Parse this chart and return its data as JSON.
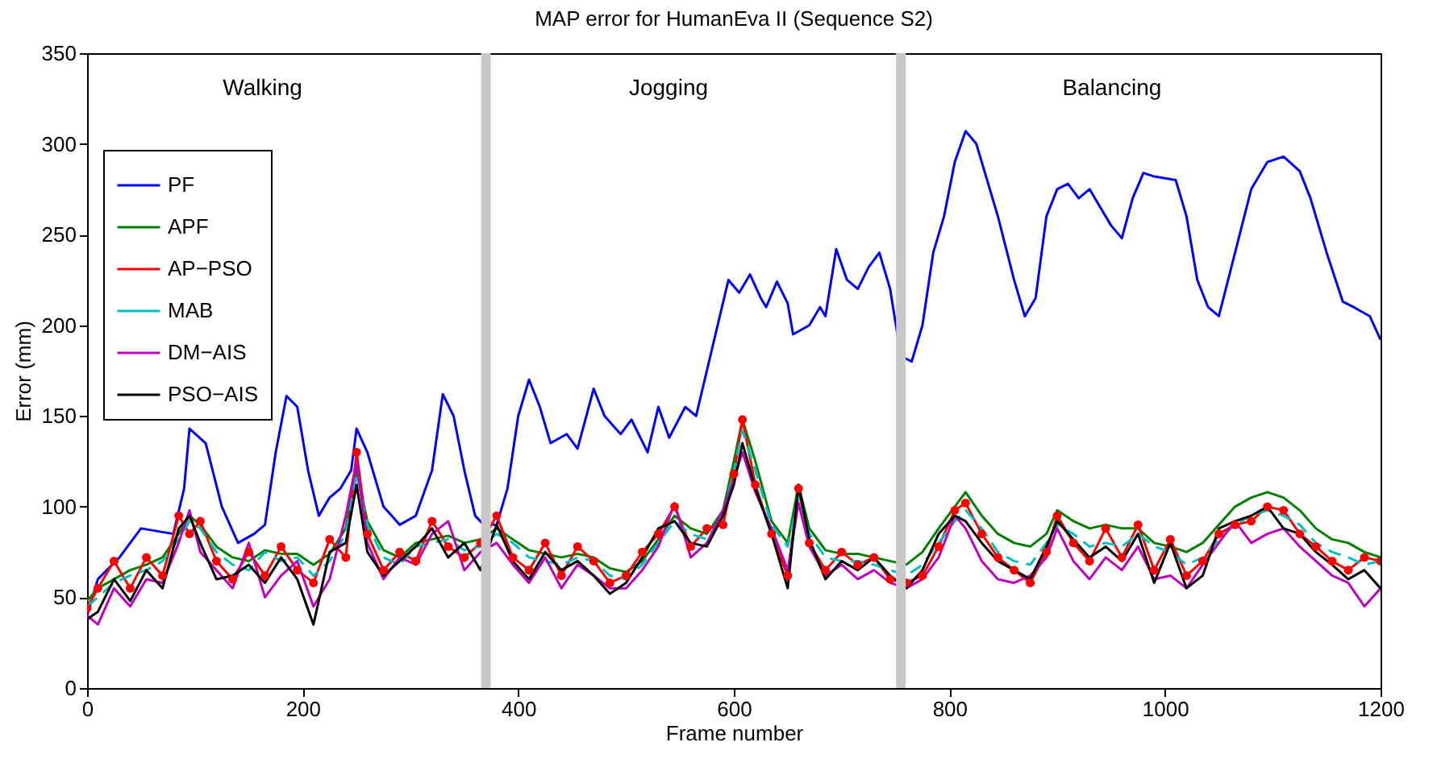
{
  "chart_data": {
    "type": "line",
    "title": "MAP error for HumanEva II (Sequence S2)",
    "xlabel": "Frame number",
    "ylabel": "Error (mm)",
    "xlim": [
      0,
      1200
    ],
    "xticks": [
      0,
      200,
      400,
      600,
      800,
      1000,
      1200
    ],
    "ylim": [
      0,
      350
    ],
    "yticks": [
      0,
      50,
      100,
      150,
      200,
      250,
      300,
      350
    ],
    "grid": false,
    "legend": "top left",
    "x": [
      0,
      10,
      25,
      40,
      55,
      70,
      85,
      95,
      105,
      120,
      135,
      150,
      165,
      180,
      195,
      210,
      225,
      240,
      250,
      260,
      275,
      290,
      305,
      320,
      335,
      350,
      365,
      380,
      395,
      410,
      425,
      440,
      455,
      470,
      485,
      500,
      515,
      530,
      545,
      560,
      575,
      590,
      600,
      608,
      620,
      635,
      650,
      660,
      670,
      685,
      700,
      715,
      730,
      745,
      760,
      775,
      790,
      805,
      815,
      830,
      845,
      860,
      875,
      890,
      900,
      915,
      930,
      945,
      960,
      975,
      990,
      1005,
      1020,
      1035,
      1050,
      1065,
      1080,
      1095,
      1110,
      1125,
      1140,
      1155,
      1170,
      1185,
      1200
    ],
    "series": [
      {
        "name": "PF",
        "color": "#0000ff",
        "line_style": "solid",
        "x": [
          0,
          10,
          30,
          50,
          80,
          90,
          95,
          110,
          125,
          140,
          155,
          165,
          175,
          185,
          195,
          205,
          215,
          225,
          235,
          245,
          250,
          260,
          275,
          290,
          305,
          320,
          330,
          340,
          350,
          360,
          368,
          380,
          390,
          400,
          410,
          420,
          430,
          445,
          455,
          470,
          480,
          495,
          505,
          520,
          530,
          540,
          555,
          565,
          575,
          585,
          595,
          605,
          615,
          625,
          630,
          640,
          650,
          655,
          670,
          680,
          685,
          695,
          705,
          715,
          725,
          735,
          745,
          755,
          765,
          775,
          785,
          795,
          805,
          815,
          825,
          845,
          860,
          870,
          880,
          890,
          900,
          910,
          920,
          930,
          950,
          960,
          970,
          980,
          990,
          1010,
          1020,
          1030,
          1040,
          1050,
          1065,
          1080,
          1095,
          1110,
          1125,
          1135,
          1150,
          1165,
          1175,
          1190,
          1200
        ],
        "values": [
          40,
          60,
          72,
          88,
          85,
          110,
          143,
          135,
          100,
          80,
          85,
          90,
          130,
          161,
          155,
          120,
          95,
          105,
          110,
          120,
          143,
          130,
          100,
          90,
          95,
          120,
          162,
          150,
          120,
          95,
          90,
          90,
          110,
          150,
          170,
          155,
          135,
          140,
          132,
          165,
          150,
          140,
          148,
          130,
          155,
          138,
          155,
          150,
          175,
          200,
          225,
          218,
          228,
          215,
          210,
          224,
          212,
          195,
          200,
          210,
          205,
          242,
          225,
          220,
          232,
          240,
          220,
          183,
          180,
          200,
          240,
          260,
          290,
          307,
          300,
          260,
          225,
          205,
          215,
          260,
          275,
          278,
          270,
          275,
          255,
          248,
          270,
          284,
          282,
          280,
          260,
          225,
          210,
          205,
          240,
          275,
          290,
          293,
          285,
          270,
          240,
          213,
          210,
          205,
          192
        ]
      },
      {
        "name": "APF",
        "color": "#008000",
        "line_style": "solid",
        "values": [
          48,
          55,
          60,
          65,
          68,
          72,
          85,
          95,
          90,
          78,
          72,
          70,
          76,
          74,
          74,
          68,
          74,
          88,
          120,
          92,
          76,
          72,
          80,
          82,
          84,
          80,
          82,
          88,
          82,
          76,
          74,
          72,
          74,
          72,
          66,
          64,
          70,
          82,
          95,
          88,
          85,
          98,
          125,
          148,
          125,
          92,
          80,
          112,
          88,
          76,
          74,
          74,
          72,
          70,
          68,
          75,
          88,
          100,
          108,
          95,
          85,
          80,
          78,
          85,
          98,
          92,
          88,
          90,
          88,
          88,
          80,
          78,
          75,
          80,
          90,
          100,
          105,
          108,
          105,
          98,
          88,
          82,
          80,
          75,
          72
        ]
      },
      {
        "name": "AP−PSO",
        "color": "#ff0000",
        "line_style": "solid",
        "marker": "circle",
        "values": [
          44,
          55,
          70,
          55,
          72,
          62,
          95,
          85,
          92,
          70,
          60,
          75,
          62,
          78,
          65,
          58,
          82,
          72,
          130,
          85,
          65,
          75,
          70,
          92,
          78,
          72,
          80,
          95,
          72,
          65,
          80,
          62,
          78,
          70,
          58,
          62,
          75,
          85,
          100,
          78,
          88,
          90,
          118,
          148,
          112,
          85,
          62,
          110,
          80,
          65,
          75,
          68,
          72,
          60,
          58,
          62,
          78,
          98,
          102,
          85,
          72,
          65,
          58,
          75,
          95,
          80,
          70,
          88,
          72,
          90,
          65,
          82,
          62,
          70,
          85,
          90,
          92,
          100,
          98,
          85,
          78,
          70,
          65,
          72,
          70
        ]
      },
      {
        "name": "MAB",
        "color": "#00bfbf",
        "line_style": "dashed",
        "values": [
          45,
          50,
          58,
          62,
          65,
          70,
          82,
          92,
          88,
          75,
          68,
          65,
          75,
          70,
          72,
          62,
          70,
          85,
          118,
          90,
          72,
          68,
          78,
          80,
          82,
          76,
          78,
          85,
          80,
          72,
          70,
          68,
          72,
          70,
          62,
          60,
          68,
          80,
          92,
          85,
          82,
          95,
          120,
          142,
          120,
          90,
          78,
          105,
          85,
          72,
          70,
          70,
          68,
          65,
          62,
          68,
          80,
          92,
          98,
          88,
          75,
          70,
          68,
          80,
          90,
          85,
          78,
          80,
          78,
          85,
          78,
          75,
          68,
          72,
          82,
          90,
          95,
          98,
          95,
          90,
          80,
          75,
          72,
          68,
          70
        ]
      },
      {
        "name": "DM−AIS",
        "color": "#bf00bf",
        "line_style": "solid",
        "values": [
          40,
          35,
          55,
          45,
          60,
          58,
          80,
          98,
          75,
          65,
          55,
          80,
          50,
          62,
          70,
          45,
          60,
          95,
          125,
          80,
          60,
          72,
          68,
          85,
          92,
          65,
          75,
          80,
          68,
          58,
          72,
          55,
          68,
          62,
          55,
          55,
          65,
          78,
          102,
          72,
          80,
          98,
          115,
          130,
          108,
          88,
          65,
          102,
          78,
          62,
          68,
          60,
          65,
          58,
          55,
          60,
          72,
          95,
          88,
          70,
          60,
          58,
          62,
          72,
          88,
          70,
          60,
          72,
          65,
          78,
          60,
          62,
          55,
          68,
          80,
          92,
          80,
          85,
          88,
          78,
          70,
          62,
          58,
          45,
          55
        ]
      },
      {
        "name": "PSO−AIS",
        "color": "#000000",
        "line_style": "solid",
        "values": [
          38,
          42,
          60,
          48,
          65,
          55,
          88,
          95,
          80,
          60,
          62,
          68,
          58,
          72,
          60,
          35,
          75,
          80,
          112,
          75,
          62,
          70,
          78,
          88,
          72,
          80,
          65,
          90,
          70,
          60,
          75,
          65,
          70,
          62,
          52,
          58,
          72,
          88,
          92,
          80,
          78,
          95,
          112,
          135,
          110,
          85,
          55,
          112,
          82,
          60,
          70,
          65,
          72,
          62,
          55,
          65,
          85,
          95,
          92,
          80,
          70,
          65,
          60,
          78,
          92,
          82,
          72,
          78,
          70,
          85,
          58,
          80,
          55,
          62,
          88,
          92,
          95,
          100,
          88,
          85,
          75,
          68,
          60,
          65,
          55
        ]
      }
    ],
    "ref_lines": [
      {
        "axis": "x",
        "value": 370,
        "color": "#c8c8c8"
      },
      {
        "axis": "x",
        "value": 755,
        "color": "#c8c8c8"
      }
    ],
    "annotations": [
      "Walking",
      "Jogging",
      "Balancing"
    ]
  }
}
